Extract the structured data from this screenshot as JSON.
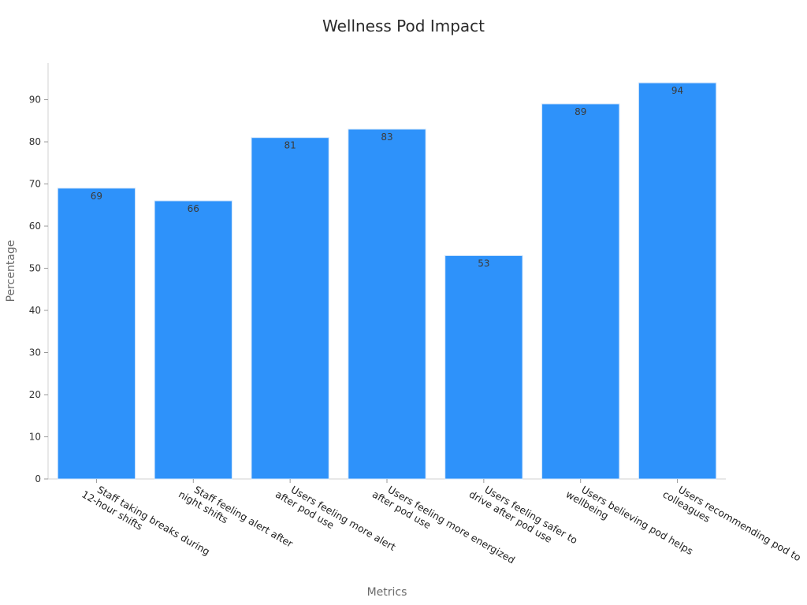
{
  "chart_data": {
    "type": "bar",
    "title": "Wellness Pod Impact",
    "xlabel": "Metrics",
    "ylabel": "Percentage",
    "categories": [
      [
        "Staff taking breaks during",
        "12-hour shifts"
      ],
      [
        "Staff feeling alert after",
        "night shifts"
      ],
      [
        "Users feeling more alert",
        "after pod use"
      ],
      [
        "Users feeling more energized",
        "after pod use"
      ],
      [
        "Users feeling safer to",
        "drive after pod use"
      ],
      [
        "Users believing pod helps",
        "wellbeing"
      ],
      [
        "Users recommending pod to",
        "colleagues"
      ]
    ],
    "values": [
      69,
      66,
      81,
      83,
      53,
      89,
      94
    ],
    "yticks": [
      0,
      10,
      20,
      30,
      40,
      50,
      60,
      70,
      80,
      90
    ],
    "ylim": [
      0,
      98.7
    ],
    "grid": false,
    "bar_color": "#2e92fa",
    "data_labels": true
  }
}
